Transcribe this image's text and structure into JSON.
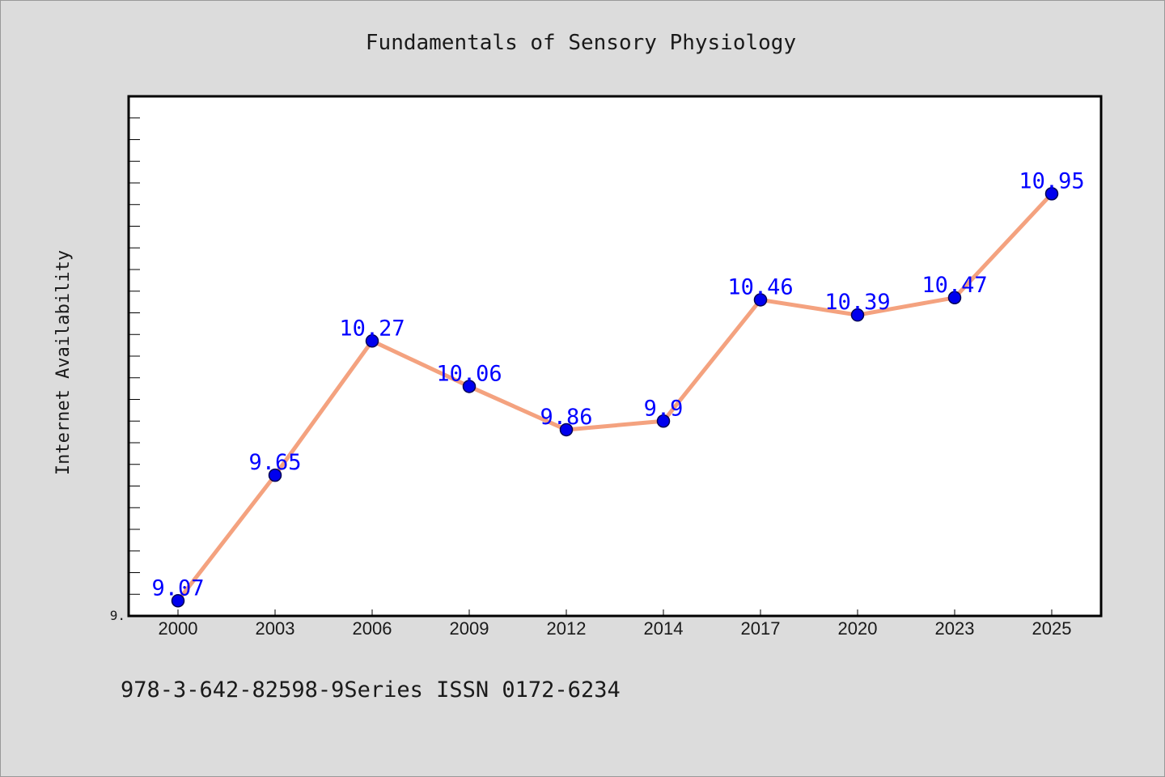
{
  "chart_data": {
    "type": "line",
    "title": "Fundamentals of Sensory Physiology",
    "xlabel": "",
    "ylabel": "Internet Availability",
    "categories": [
      "2000",
      "2003",
      "2006",
      "2009",
      "2012",
      "2014",
      "2017",
      "2020",
      "2023",
      "2025"
    ],
    "series": [
      {
        "values": [
          9.07,
          9.65,
          10.27,
          10.06,
          9.86,
          9.9,
          10.46,
          10.39,
          10.47,
          10.95
        ],
        "value_labels": [
          "9.07",
          "9.65",
          "10.27",
          "10.06",
          "9.86",
          "9.9",
          "10.46",
          "10.39",
          "10.47",
          "10.95"
        ]
      }
    ],
    "ylim": [
      9.0,
      11.4
    ],
    "ytick_labels": [
      "9."
    ],
    "grid": false,
    "legend": "none",
    "colors": {
      "line": "#f4a27f",
      "marker": "#0000ee",
      "marker_edge": "#000055",
      "value_label": "#0000ff",
      "plot_background": "#ffffff",
      "page_background": "#dcdcdc"
    }
  },
  "footer": {
    "text": "978-3-642-82598-9Series ISSN 0172-6234"
  }
}
